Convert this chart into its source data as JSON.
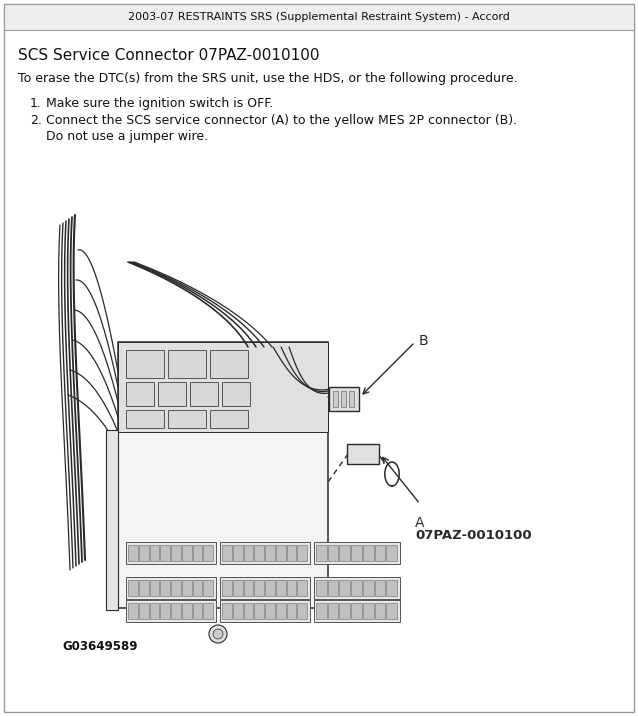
{
  "header_text": "2003-07 RESTRAINTS SRS (Supplemental Restraint System) - Accord",
  "title_text": "SCS Service Connector 07PAZ-0010100",
  "intro_text": "To erase the DTC(s) from the SRS unit, use the HDS, or the following procedure.",
  "step1": "Make sure the ignition switch is OFF.",
  "step2_line1": "Connect the SCS service connector (A) to the yellow MES 2P connector (B).",
  "step2_line2": "Do not use a jumper wire.",
  "label_a": "A",
  "label_b": "B",
  "label_part": "07PAZ-0010100",
  "diagram_caption": "G03649589",
  "bg_color": "#ffffff",
  "border_color": "#aaaaaa",
  "text_color": "#111111",
  "font_size_header": 8,
  "font_size_title": 11,
  "font_size_body": 9,
  "font_size_caption": 8.5
}
